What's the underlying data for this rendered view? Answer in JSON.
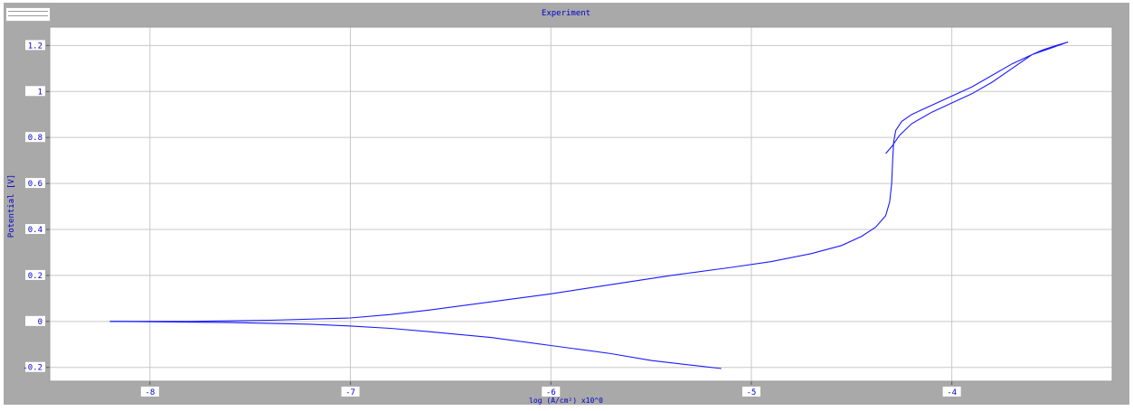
{
  "chart_data": {
    "type": "line",
    "title": "Experiment",
    "xlabel": "log (A/cm²) x10^0",
    "ylabel": "Potential [V]",
    "xlim": [
      -8.5,
      -3.2
    ],
    "ylim": [
      -0.26,
      1.28
    ],
    "x_ticks": [
      -8,
      -7,
      -6,
      -5,
      -4
    ],
    "y_ticks": [
      -0.2,
      0,
      0.2,
      0.4,
      0.6,
      0.8,
      1,
      1.2
    ],
    "grid": true,
    "colors": {
      "line": "#1a1aff",
      "grid": "#c8c8c8",
      "frame": "#a9a9a9",
      "label": "#0000cc"
    },
    "series": [
      {
        "values": [
          [
            -8.2,
            0.0
          ],
          [
            -7.8,
            0.0
          ],
          [
            -7.4,
            0.005
          ],
          [
            -7.0,
            0.015
          ],
          [
            -6.8,
            0.03
          ],
          [
            -6.6,
            0.05
          ],
          [
            -6.3,
            0.085
          ],
          [
            -6.0,
            0.12
          ],
          [
            -5.7,
            0.16
          ],
          [
            -5.4,
            0.2
          ],
          [
            -5.1,
            0.235
          ],
          [
            -4.9,
            0.26
          ],
          [
            -4.7,
            0.295
          ],
          [
            -4.55,
            0.33
          ],
          [
            -4.45,
            0.37
          ],
          [
            -4.38,
            0.41
          ],
          [
            -4.33,
            0.46
          ],
          [
            -4.31,
            0.52
          ],
          [
            -4.3,
            0.6
          ],
          [
            -4.295,
            0.7
          ],
          [
            -4.29,
            0.78
          ],
          [
            -4.28,
            0.83
          ],
          [
            -4.25,
            0.87
          ],
          [
            -4.2,
            0.9
          ],
          [
            -4.1,
            0.94
          ],
          [
            -4.0,
            0.98
          ],
          [
            -3.9,
            1.02
          ],
          [
            -3.8,
            1.07
          ],
          [
            -3.7,
            1.12
          ],
          [
            -3.6,
            1.16
          ],
          [
            -3.5,
            1.19
          ],
          [
            -3.42,
            1.215
          ],
          [
            -3.48,
            1.2
          ],
          [
            -3.55,
            1.18
          ],
          [
            -3.6,
            1.16
          ],
          [
            -3.7,
            1.1
          ],
          [
            -3.8,
            1.04
          ],
          [
            -3.9,
            0.99
          ],
          [
            -4.0,
            0.95
          ],
          [
            -4.1,
            0.91
          ],
          [
            -4.2,
            0.86
          ],
          [
            -4.26,
            0.81
          ],
          [
            -4.3,
            0.76
          ],
          [
            -4.33,
            0.73
          ],
          [
            -4.29,
            0.77
          ],
          [
            -4.32,
            0.74
          ]
        ]
      },
      {
        "values": [
          [
            -8.2,
            0.0
          ],
          [
            -7.6,
            -0.005
          ],
          [
            -7.2,
            -0.012
          ],
          [
            -7.0,
            -0.02
          ],
          [
            -6.8,
            -0.03
          ],
          [
            -6.6,
            -0.045
          ],
          [
            -6.3,
            -0.07
          ],
          [
            -6.0,
            -0.105
          ],
          [
            -5.7,
            -0.14
          ],
          [
            -5.5,
            -0.17
          ],
          [
            -5.3,
            -0.19
          ],
          [
            -5.15,
            -0.205
          ]
        ]
      }
    ]
  }
}
